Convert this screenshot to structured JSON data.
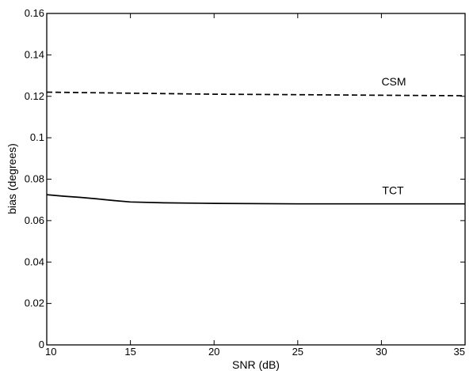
{
  "chart_data": {
    "type": "line",
    "xlabel": "SNR (dB)",
    "ylabel": "bias (degrees)",
    "xlim": [
      10,
      35
    ],
    "ylim": [
      0,
      0.16
    ],
    "xticks": [
      10,
      15,
      20,
      25,
      30,
      35
    ],
    "xtick_labels": [
      "10",
      "15",
      "20",
      "25",
      "30",
      "35"
    ],
    "yticks": [
      0,
      0.02,
      0.04,
      0.06,
      0.08,
      0.1,
      0.12,
      0.14,
      0.16
    ],
    "ytick_labels": [
      "0",
      "0.02",
      "0.04",
      "0.06",
      "0.08",
      "0.1",
      "0.12",
      "0.14",
      "0.16"
    ],
    "grid": false,
    "series": [
      {
        "name": "CSM",
        "style": "dashed",
        "color": "#000000",
        "x": [
          10,
          15,
          20,
          25,
          30,
          35
        ],
        "y": [
          0.122,
          0.1215,
          0.121,
          0.1208,
          0.1205,
          0.1203
        ]
      },
      {
        "name": "TCT",
        "style": "solid",
        "color": "#000000",
        "x": [
          10,
          11,
          12,
          13,
          14,
          15,
          17,
          20,
          25,
          30,
          35
        ],
        "y": [
          0.0725,
          0.0718,
          0.0712,
          0.0705,
          0.0697,
          0.069,
          0.0686,
          0.0683,
          0.0681,
          0.0681,
          0.0681
        ]
      }
    ]
  }
}
